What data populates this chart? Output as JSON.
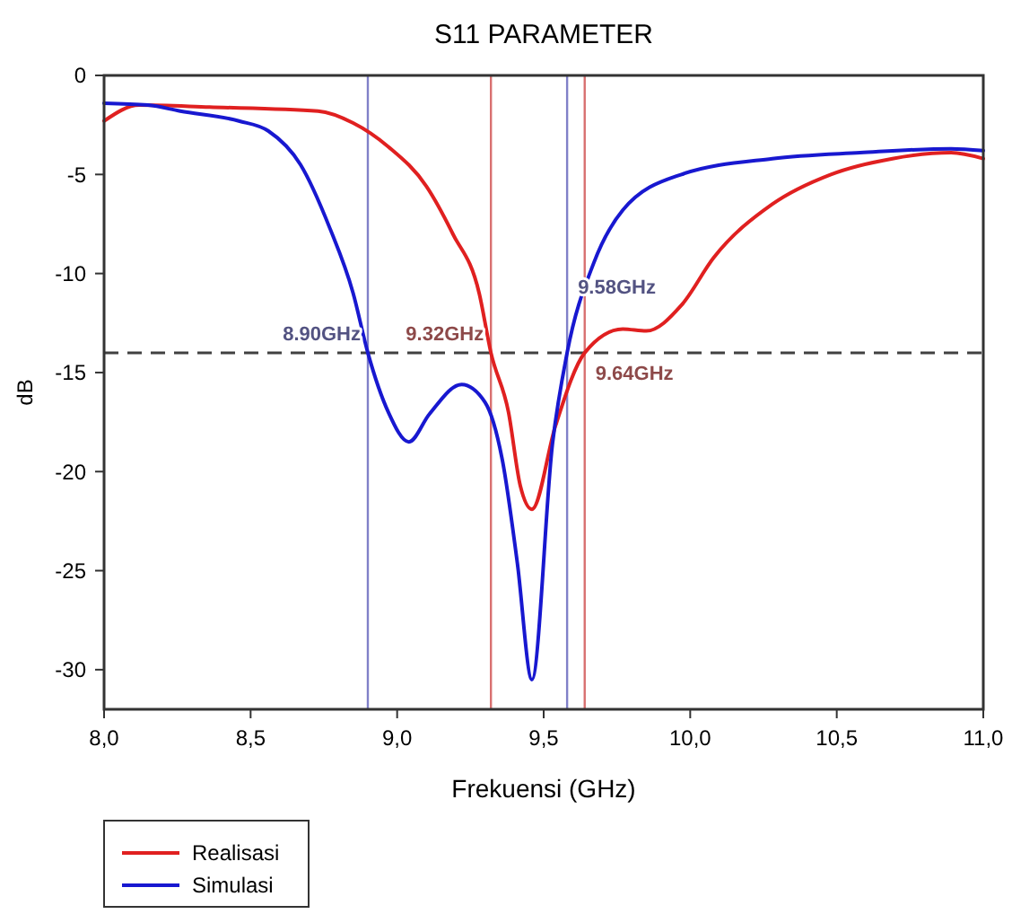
{
  "chart_data": {
    "type": "line",
    "title": "S11 PARAMETER",
    "xlabel": "Frekuensi (GHz)",
    "ylabel": "dB",
    "xlim": [
      8,
      11
    ],
    "xticks": [
      {
        "value": 8,
        "label": "8,0"
      },
      {
        "value": 8.5,
        "label": "8,5"
      },
      {
        "value": 9,
        "label": "9,0"
      },
      {
        "value": 9.5,
        "label": "9,5"
      },
      {
        "value": 10,
        "label": "10,0"
      },
      {
        "value": 10.5,
        "label": "10,5"
      },
      {
        "value": 11,
        "label": "11,0"
      }
    ],
    "ylim": [
      -32,
      0
    ],
    "yticks": [
      0,
      -5,
      -10,
      -15,
      -20,
      -25,
      -30
    ],
    "grid": false,
    "legend": "bottom left",
    "marker": "none",
    "line_style": "solid",
    "series": [
      {
        "name": "Realisasi",
        "color": "#e02020",
        "x": [
          8.0,
          8.12,
          8.36,
          8.73,
          8.85,
          8.97,
          9.1,
          9.19,
          9.28,
          9.32,
          9.38,
          9.42,
          9.46,
          9.54,
          9.64,
          9.77,
          9.85,
          9.97,
          10.08,
          10.28,
          10.48,
          10.69,
          10.89,
          11.0
        ],
        "values": [
          -2.3,
          -1.5,
          -1.6,
          -1.8,
          -2.4,
          -3.6,
          -5.6,
          -8,
          -11,
          -14,
          -17,
          -20.7,
          -21.9,
          -17.7,
          -14,
          -12.8,
          -12.9,
          -11.6,
          -9.2,
          -6.5,
          -5,
          -4.2,
          -3.9,
          -4.2
        ]
      },
      {
        "name": "Simulasi",
        "color": "#1818d0",
        "x": [
          8.0,
          8.15,
          8.26,
          8.46,
          8.56,
          8.67,
          8.77,
          8.85,
          8.9,
          8.97,
          9.04,
          9.11,
          9.22,
          9.3,
          9.36,
          9.41,
          9.46,
          9.53,
          9.58,
          9.67,
          9.77,
          9.97,
          10.28,
          10.58,
          10.89,
          11.0
        ],
        "values": [
          -1.4,
          -1.5,
          -1.8,
          -2.3,
          -2.8,
          -4.5,
          -7.7,
          -11,
          -14,
          -17,
          -18.5,
          -17.1,
          -15.6,
          -16.5,
          -19.5,
          -24.6,
          -30.5,
          -18.6,
          -14,
          -9.5,
          -6.8,
          -5,
          -4.2,
          -3.9,
          -3.7,
          -3.8
        ]
      }
    ],
    "ref_lines": [
      {
        "axis": "y",
        "value": -14,
        "color": "#404040",
        "line_style": "dashed"
      },
      {
        "axis": "x",
        "value": 8.9,
        "color": "#8080c8",
        "line_style": "solid",
        "label": "8.90GHz"
      },
      {
        "axis": "x",
        "value": 9.32,
        "color": "#d87070",
        "line_style": "solid",
        "label": "9.32GHz"
      },
      {
        "axis": "x",
        "value": 9.58,
        "color": "#8080c8",
        "line_style": "solid",
        "label": "9.58GHz"
      },
      {
        "axis": "x",
        "value": 9.64,
        "color": "#d87070",
        "line_style": "solid",
        "label": "9.64GHz"
      }
    ]
  }
}
